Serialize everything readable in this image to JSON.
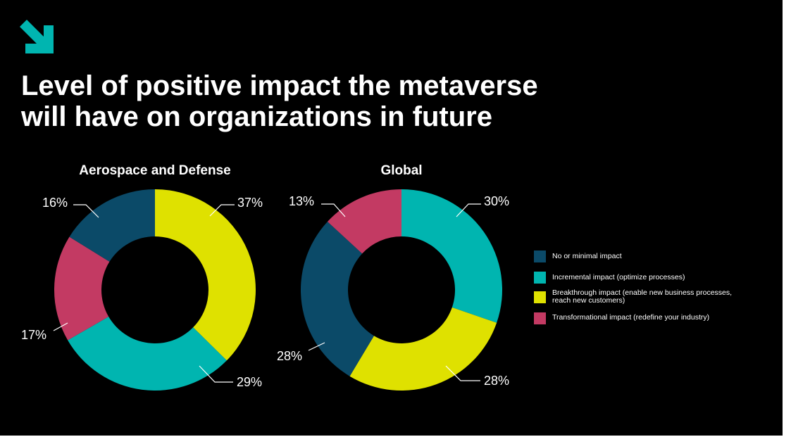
{
  "title_lines": [
    "Level of positive impact the metaverse",
    "will have on organizations in future"
  ],
  "icons": {
    "logo": "arrow-down-right-icon"
  },
  "colors": {
    "background": "#000000",
    "accent": "#00b5b0",
    "no_minimal": "#0b4a68",
    "incremental": "#00b5b0",
    "breakthrough": "#dfe100",
    "transformational": "#c33a63"
  },
  "legend": [
    {
      "label_lines": [
        "No or minimal impact"
      ],
      "color": "#0b4a68"
    },
    {
      "label_lines": [
        "Incremental impact (optimize processes)"
      ],
      "color": "#00b5b0"
    },
    {
      "label_lines": [
        "Breakthrough impact (enable new business processes,",
        "reach new customers)"
      ],
      "color": "#dfe100"
    },
    {
      "label_lines": [
        "Transformational impact (redefine your industry)"
      ],
      "color": "#c33a63"
    }
  ],
  "chart_data": [
    {
      "type": "pie",
      "title": "Aerospace and Defense",
      "categories": [
        "Breakthrough impact",
        "Incremental impact",
        "Transformational impact",
        "No or minimal impact"
      ],
      "values": [
        37,
        29,
        17,
        16
      ],
      "value_labels": [
        "37%",
        "29%",
        "17%",
        "16%"
      ],
      "colors": [
        "#dfe100",
        "#00b5b0",
        "#c33a63",
        "#0b4a68"
      ]
    },
    {
      "type": "pie",
      "title": "Global",
      "categories": [
        "Incremental impact",
        "Breakthrough impact",
        "No or minimal impact",
        "Transformational impact"
      ],
      "values": [
        30,
        28,
        28,
        13
      ],
      "value_labels": [
        "30%",
        "28%",
        "28%",
        "13%"
      ],
      "colors": [
        "#00b5b0",
        "#dfe100",
        "#0b4a68",
        "#c33a63"
      ]
    }
  ]
}
